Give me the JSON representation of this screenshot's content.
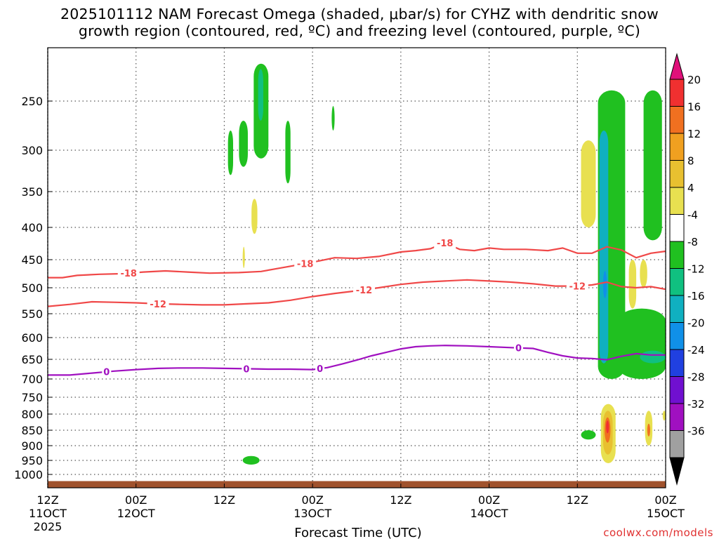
{
  "title": {
    "line1": "2025101112 NAM Forecast Omega (shaded, μbar/s) for CYHZ with dendritic snow",
    "line2": "growth region (contoured, red, ºC) and freezing level (contoured, purple, ºC)"
  },
  "credit": "coolwx.com/models",
  "chart_data": {
    "type": "heatmap",
    "xlabel": "Forecast Time (UTC)",
    "x_ticks": [
      {
        "hour": 0,
        "line1": "12Z",
        "line2": "11OCT",
        "line3": "2025"
      },
      {
        "hour": 12,
        "line1": "00Z",
        "line2": "12OCT",
        "line3": ""
      },
      {
        "hour": 24,
        "line1": "12Z",
        "line2": "",
        "line3": ""
      },
      {
        "hour": 36,
        "line1": "00Z",
        "line2": "13OCT",
        "line3": ""
      },
      {
        "hour": 48,
        "line1": "12Z",
        "line2": "",
        "line3": ""
      },
      {
        "hour": 60,
        "line1": "00Z",
        "line2": "14OCT",
        "line3": ""
      },
      {
        "hour": 72,
        "line1": "12Z",
        "line2": "",
        "line3": ""
      },
      {
        "hour": 84,
        "line1": "00Z",
        "line2": "15OCT",
        "line3": ""
      }
    ],
    "xlim_hours": [
      0,
      84
    ],
    "y_ticks": [
      250,
      300,
      350,
      400,
      450,
      500,
      550,
      600,
      650,
      700,
      750,
      800,
      850,
      900,
      950,
      1000
    ],
    "ylim_hpa": [
      1040,
      200
    ],
    "grid": true,
    "colorbar": {
      "labels": [
        "20",
        "16",
        "12",
        "8",
        "4",
        "-4",
        "-8",
        "-12",
        "-16",
        "-20",
        "-24",
        "-28",
        "-32",
        "-36"
      ],
      "colors": [
        "#f03030",
        "#f07020",
        "#f0a020",
        "#e8c030",
        "#e8e050",
        "#ffffff",
        "#20c020",
        "#10c080",
        "#10b0c0",
        "#1090e8",
        "#2040e0",
        "#7010d0",
        "#a010c0",
        "#a0a0a0"
      ],
      "top_color": "#e0107a",
      "bottom_color": "#000000"
    },
    "contours": [
      {
        "name": "-18",
        "color": "#f04848",
        "labels": [
          {
            "hour": 11,
            "text": "-18"
          },
          {
            "hour": 35,
            "text": "-18"
          },
          {
            "hour": 54,
            "text": "-18"
          }
        ],
        "points": [
          [
            0,
            482
          ],
          [
            2,
            482
          ],
          [
            4,
            478
          ],
          [
            7,
            476
          ],
          [
            10,
            475
          ],
          [
            13,
            472
          ],
          [
            16,
            470
          ],
          [
            19,
            472
          ],
          [
            22,
            474
          ],
          [
            26,
            473
          ],
          [
            29,
            471
          ],
          [
            32,
            464
          ],
          [
            35,
            457
          ],
          [
            37,
            452
          ],
          [
            39,
            447
          ],
          [
            42,
            448
          ],
          [
            45,
            445
          ],
          [
            48,
            438
          ],
          [
            50,
            436
          ],
          [
            52,
            433
          ],
          [
            54,
            424
          ],
          [
            56,
            434
          ],
          [
            58,
            436
          ],
          [
            60,
            432
          ],
          [
            62,
            434
          ],
          [
            65,
            434
          ],
          [
            68,
            436
          ],
          [
            70,
            432
          ],
          [
            72,
            440
          ],
          [
            74,
            440
          ],
          [
            76,
            430
          ],
          [
            78,
            435
          ],
          [
            80,
            447
          ],
          [
            82,
            440
          ],
          [
            84,
            437
          ]
        ]
      },
      {
        "name": "-12",
        "color": "#f04848",
        "labels": [
          {
            "hour": 15,
            "text": "-12"
          },
          {
            "hour": 43,
            "text": "-12"
          },
          {
            "hour": 72,
            "text": "-12"
          }
        ],
        "points": [
          [
            0,
            536
          ],
          [
            3,
            532
          ],
          [
            6,
            527
          ],
          [
            9,
            528
          ],
          [
            12,
            529
          ],
          [
            15,
            531
          ],
          [
            18,
            532
          ],
          [
            21,
            533
          ],
          [
            24,
            533
          ],
          [
            27,
            531
          ],
          [
            30,
            529
          ],
          [
            33,
            524
          ],
          [
            36,
            517
          ],
          [
            39,
            511
          ],
          [
            42,
            506
          ],
          [
            45,
            500
          ],
          [
            48,
            494
          ],
          [
            51,
            490
          ],
          [
            54,
            488
          ],
          [
            57,
            486
          ],
          [
            60,
            488
          ],
          [
            63,
            490
          ],
          [
            66,
            493
          ],
          [
            69,
            497
          ],
          [
            72,
            497
          ],
          [
            74,
            495
          ],
          [
            76,
            490
          ],
          [
            78,
            498
          ],
          [
            80,
            500
          ],
          [
            82,
            498
          ],
          [
            84,
            503
          ]
        ]
      },
      {
        "name": "0",
        "color": "#a010c0",
        "labels": [
          {
            "hour": 8,
            "text": "0"
          },
          {
            "hour": 27,
            "text": "0"
          },
          {
            "hour": 37,
            "text": "0"
          },
          {
            "hour": 64,
            "text": "0"
          }
        ],
        "points": [
          [
            0,
            690
          ],
          [
            3,
            690
          ],
          [
            6,
            685
          ],
          [
            9,
            680
          ],
          [
            12,
            676
          ],
          [
            15,
            673
          ],
          [
            18,
            672
          ],
          [
            21,
            672
          ],
          [
            24,
            673
          ],
          [
            27,
            674
          ],
          [
            30,
            675
          ],
          [
            33,
            675
          ],
          [
            36,
            676
          ],
          [
            38,
            671
          ],
          [
            40,
            662
          ],
          [
            42,
            652
          ],
          [
            44,
            642
          ],
          [
            46,
            634
          ],
          [
            48,
            626
          ],
          [
            50,
            621
          ],
          [
            52,
            619
          ],
          [
            54,
            618
          ],
          [
            57,
            619
          ],
          [
            60,
            621
          ],
          [
            63,
            623
          ],
          [
            66,
            625
          ],
          [
            68,
            634
          ],
          [
            70,
            642
          ],
          [
            72,
            647
          ],
          [
            74,
            648
          ],
          [
            76,
            651
          ],
          [
            78,
            643
          ],
          [
            80,
            637
          ],
          [
            82,
            640
          ],
          [
            84,
            640
          ]
        ]
      }
    ],
    "omega_regions": [
      {
        "color": "#20c020",
        "value": "-4 to -8",
        "x_hours": [
          24.5,
          25.2
        ],
        "p": [
          280,
          330
        ]
      },
      {
        "color": "#20c020",
        "value": "-4 to -8",
        "x_hours": [
          26.0,
          27.2
        ],
        "p": [
          270,
          320
        ]
      },
      {
        "color": "#20c020",
        "value": "-4 to -8",
        "x_hours": [
          28.0,
          30.0
        ],
        "p": [
          215,
          310
        ]
      },
      {
        "color": "#10c080",
        "value": "-8 to -12",
        "x_hours": [
          28.6,
          29.3
        ],
        "p": [
          220,
          270
        ]
      },
      {
        "color": "#20c020",
        "value": "-4 to -8",
        "x_hours": [
          32.3,
          33.0
        ],
        "p": [
          270,
          340
        ]
      },
      {
        "color": "#20c020",
        "value": "-4 to -8",
        "x_hours": [
          38.6,
          39.0
        ],
        "p": [
          255,
          280
        ]
      },
      {
        "color": "#e8e050",
        "value": "4 to 8",
        "x_hours": [
          27.7,
          28.5
        ],
        "p": [
          360,
          410
        ]
      },
      {
        "color": "#e8e050",
        "value": "4 to 8",
        "x_hours": [
          26.5,
          26.8
        ],
        "p": [
          430,
          465
        ]
      },
      {
        "color": "#20c020",
        "value": "-4 to -8",
        "x_hours": [
          26.5,
          28.8
        ],
        "p": [
          935,
          965
        ]
      },
      {
        "color": "#e8e050",
        "value": "4 to 8",
        "x_hours": [
          72.5,
          74.5
        ],
        "p": [
          290,
          400
        ]
      },
      {
        "color": "#20c020",
        "value": "-4 to -8",
        "x_hours": [
          74.8,
          78.5
        ],
        "p": [
          240,
          700
        ]
      },
      {
        "color": "#10b0c0",
        "value": "-12 to -16",
        "x_hours": [
          75.0,
          76.2
        ],
        "p": [
          280,
          660
        ]
      },
      {
        "color": "#1090e8",
        "value": "-16 to -20",
        "x_hours": [
          75.5,
          76.0
        ],
        "p": [
          470,
          520
        ]
      },
      {
        "color": "#20c020",
        "value": "-4 to -8",
        "x_hours": [
          81.0,
          83.5
        ],
        "p": [
          240,
          420
        ]
      },
      {
        "color": "#20c020",
        "value": "-4 to -8",
        "x_hours": [
          77.5,
          84.0
        ],
        "p": [
          540,
          700
        ]
      },
      {
        "color": "#10c080",
        "value": "-8 to -12",
        "x_hours": [
          80.5,
          84.0
        ],
        "p": [
          630,
          660
        ]
      },
      {
        "color": "#e8e050",
        "value": "4 to 8",
        "x_hours": [
          79.0,
          80.0
        ],
        "p": [
          450,
          540
        ]
      },
      {
        "color": "#e8e050",
        "value": "4 to 8",
        "x_hours": [
          80.5,
          81.5
        ],
        "p": [
          450,
          500
        ]
      },
      {
        "color": "#20c020",
        "value": "-4 to -8",
        "x_hours": [
          72.5,
          74.5
        ],
        "p": [
          850,
          880
        ]
      },
      {
        "color": "#e8e050",
        "value": "4 to 8",
        "x_hours": [
          75.2,
          77.2
        ],
        "p": [
          770,
          960
        ]
      },
      {
        "color": "#e8c030",
        "value": "8 to 12",
        "x_hours": [
          75.5,
          76.8
        ],
        "p": [
          790,
          930
        ]
      },
      {
        "color": "#f07020",
        "value": "12 to 16",
        "x_hours": [
          75.7,
          76.5
        ],
        "p": [
          810,
          890
        ]
      },
      {
        "color": "#f03030",
        "value": "16 to 20",
        "x_hours": [
          75.9,
          76.3
        ],
        "p": [
          820,
          860
        ]
      },
      {
        "color": "#e8e050",
        "value": "4 to 8",
        "x_hours": [
          81.2,
          82.2
        ],
        "p": [
          790,
          900
        ]
      },
      {
        "color": "#f07020",
        "value": "12 to 16",
        "x_hours": [
          81.5,
          81.9
        ],
        "p": [
          830,
          870
        ]
      },
      {
        "color": "#e8e050",
        "value": "4 to 8",
        "x_hours": [
          83.6,
          84.0
        ],
        "p": [
          790,
          820
        ]
      }
    ],
    "ground": {
      "color": "#a0522d",
      "p_top": 1020
    }
  }
}
